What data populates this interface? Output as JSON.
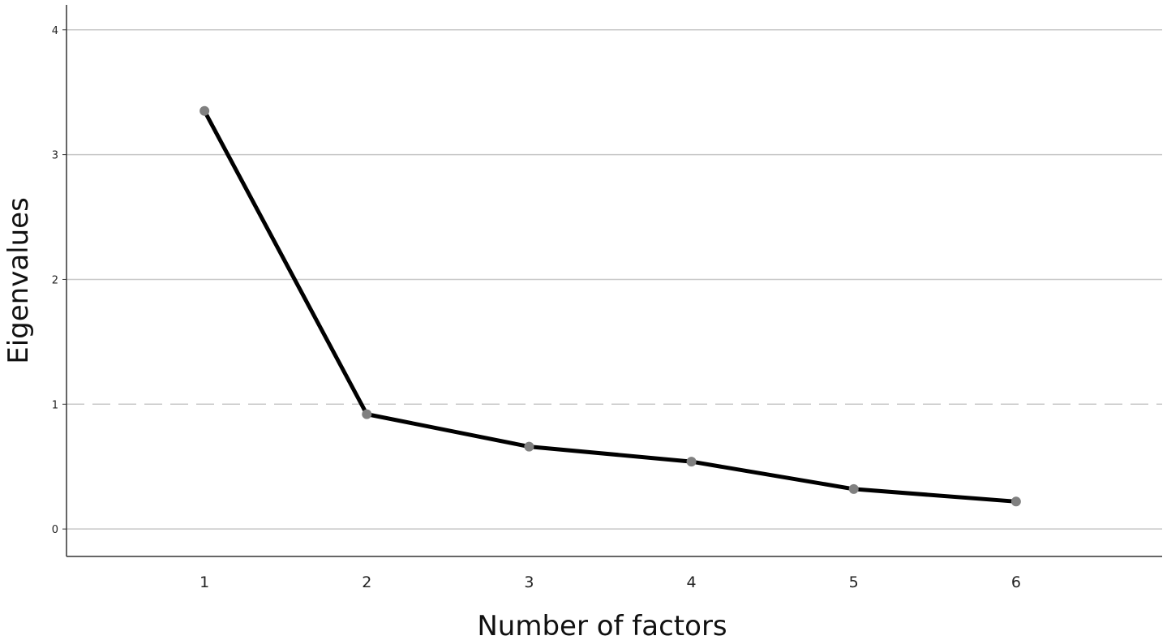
{
  "chart_data": {
    "type": "line",
    "title": "",
    "xlabel": "Number of factors",
    "ylabel": "Eigenvalues",
    "x": [
      1,
      2,
      3,
      4,
      5,
      6
    ],
    "xticks": [
      "1",
      "2",
      "3",
      "4",
      "5",
      "6"
    ],
    "yticks": [
      "0",
      "1",
      "2",
      "3",
      "4"
    ],
    "xlim": [
      0.15,
      6.9
    ],
    "ylim": [
      -0.22,
      4.2
    ],
    "grid": true,
    "reference_line": {
      "y": 1,
      "style": "dashed"
    },
    "series": [
      {
        "values": [
          3.35,
          0.92,
          0.66,
          0.54,
          0.32,
          0.22
        ]
      }
    ],
    "colors": {
      "line": "#000000",
      "marker": "#808080",
      "grid": "#c8c8c8",
      "reference": "#c8c8c8",
      "axis": "#333333"
    }
  }
}
